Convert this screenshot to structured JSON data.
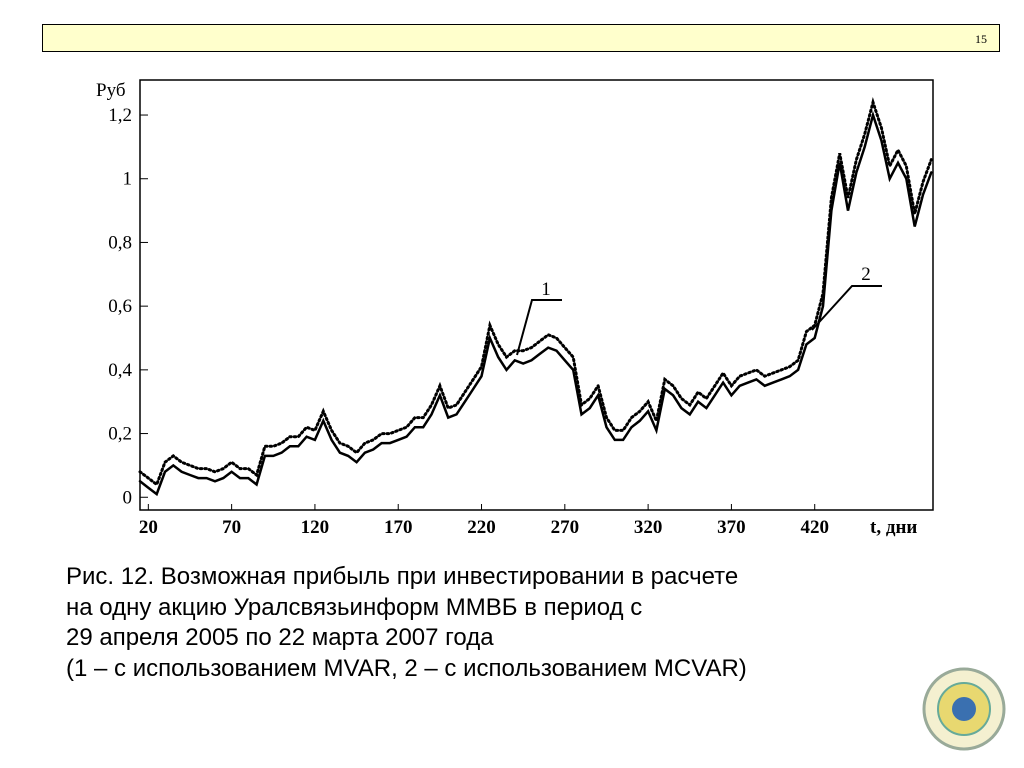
{
  "page_number": "15",
  "caption": [
    "Рис. 12. Возможная прибыль при инвестировании в расчете",
    "на одну акцию Уралсвязьинформ ММВБ в период с",
    "29 апреля 2005 по 22 марта 2007 года",
    "(1 – с использованием MVAR, 2 – с использованием MCVAR)"
  ],
  "chart_data": {
    "type": "line",
    "y_label": "Руб",
    "x_label": "t, дни",
    "xlim": [
      15,
      491
    ],
    "xticks": [
      20,
      70,
      120,
      170,
      220,
      270,
      320,
      370,
      420
    ],
    "ylim": [
      -0.04,
      1.31
    ],
    "yticks": [
      0,
      {
        "value": 0.2,
        "label": "0,2"
      },
      {
        "value": 0.4,
        "label": "0,4"
      },
      {
        "value": 0.6,
        "label": "0,6"
      },
      {
        "value": 0.8,
        "label": "0,8"
      },
      1,
      {
        "value": 1.2,
        "label": "1,2"
      }
    ],
    "x": [
      15,
      20,
      25,
      30,
      35,
      40,
      45,
      50,
      55,
      60,
      65,
      70,
      75,
      80,
      85,
      90,
      95,
      100,
      105,
      110,
      115,
      120,
      125,
      130,
      135,
      140,
      145,
      150,
      155,
      160,
      165,
      170,
      175,
      180,
      185,
      190,
      195,
      200,
      205,
      210,
      215,
      220,
      225,
      230,
      235,
      240,
      245,
      250,
      255,
      260,
      265,
      270,
      275,
      280,
      285,
      290,
      295,
      300,
      305,
      310,
      315,
      320,
      325,
      330,
      335,
      340,
      345,
      350,
      355,
      360,
      365,
      370,
      375,
      380,
      385,
      390,
      395,
      400,
      405,
      410,
      415,
      420,
      425,
      430,
      435,
      440,
      445,
      450,
      455,
      460,
      465,
      470,
      475,
      480,
      485,
      490
    ],
    "series": [
      {
        "name": "1",
        "color": "#000",
        "style": "dotted",
        "values": [
          0.08,
          0.06,
          0.04,
          0.11,
          0.13,
          0.11,
          0.1,
          0.09,
          0.09,
          0.08,
          0.09,
          0.11,
          0.09,
          0.09,
          0.07,
          0.16,
          0.16,
          0.17,
          0.19,
          0.19,
          0.22,
          0.21,
          0.27,
          0.21,
          0.17,
          0.16,
          0.14,
          0.17,
          0.18,
          0.2,
          0.2,
          0.21,
          0.22,
          0.25,
          0.25,
          0.29,
          0.35,
          0.28,
          0.29,
          0.33,
          0.37,
          0.41,
          0.54,
          0.48,
          0.44,
          0.46,
          0.46,
          0.47,
          0.49,
          0.51,
          0.5,
          0.47,
          0.44,
          0.29,
          0.31,
          0.35,
          0.25,
          0.21,
          0.21,
          0.25,
          0.27,
          0.3,
          0.24,
          0.37,
          0.35,
          0.31,
          0.29,
          0.33,
          0.31,
          0.35,
          0.39,
          0.35,
          0.38,
          0.39,
          0.4,
          0.38,
          0.39,
          0.4,
          0.41,
          0.43,
          0.52,
          0.54,
          0.64,
          0.94,
          1.08,
          0.94,
          1.06,
          1.14,
          1.24,
          1.16,
          1.04,
          1.09,
          1.04,
          0.89,
          0.99,
          1.06
        ]
      },
      {
        "name": "2",
        "color": "#000",
        "style": "solid",
        "values": [
          0.05,
          0.03,
          0.01,
          0.08,
          0.1,
          0.08,
          0.07,
          0.06,
          0.06,
          0.05,
          0.06,
          0.08,
          0.06,
          0.06,
          0.04,
          0.13,
          0.13,
          0.14,
          0.16,
          0.16,
          0.19,
          0.18,
          0.24,
          0.18,
          0.14,
          0.13,
          0.11,
          0.14,
          0.15,
          0.17,
          0.17,
          0.18,
          0.19,
          0.22,
          0.22,
          0.26,
          0.32,
          0.25,
          0.26,
          0.3,
          0.34,
          0.38,
          0.5,
          0.44,
          0.4,
          0.43,
          0.42,
          0.43,
          0.45,
          0.47,
          0.46,
          0.43,
          0.4,
          0.26,
          0.28,
          0.32,
          0.22,
          0.18,
          0.18,
          0.22,
          0.24,
          0.27,
          0.21,
          0.34,
          0.32,
          0.28,
          0.26,
          0.3,
          0.28,
          0.32,
          0.36,
          0.32,
          0.35,
          0.36,
          0.37,
          0.35,
          0.36,
          0.37,
          0.38,
          0.4,
          0.48,
          0.5,
          0.6,
          0.9,
          1.05,
          0.9,
          1.02,
          1.1,
          1.2,
          1.12,
          1.0,
          1.05,
          1.0,
          0.85,
          0.95,
          1.02
        ]
      }
    ]
  }
}
